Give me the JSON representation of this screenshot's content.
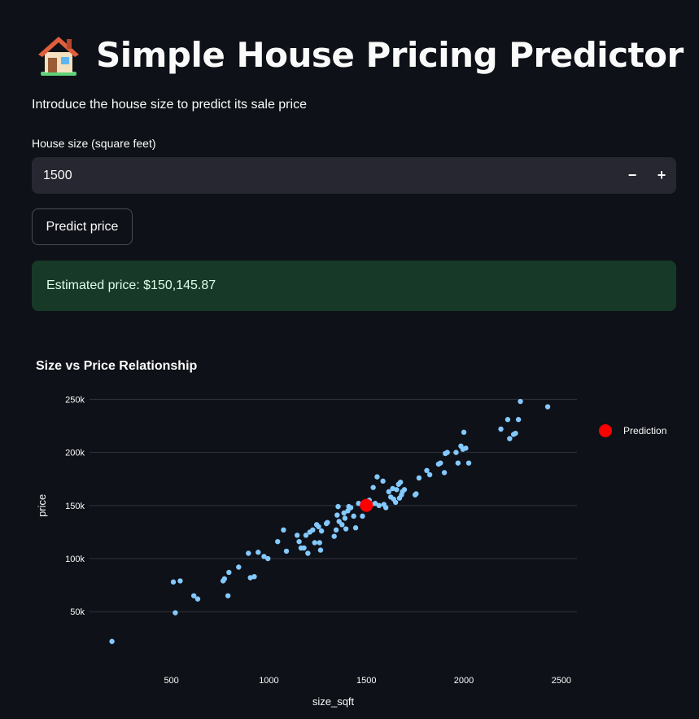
{
  "header": {
    "title": "Simple House Pricing Predictor",
    "icon": "house-icon"
  },
  "intro": "Introduce the house size to predict its sale price",
  "size_input": {
    "label": "House size (square feet)",
    "value": "1500",
    "decrement_label": "−",
    "increment_label": "+"
  },
  "predict_button": {
    "label": "Predict price"
  },
  "result": {
    "text": "Estimated price: $150,145.87",
    "background": "#173928"
  },
  "chart_section": {
    "title": "Size vs Price Relationship"
  },
  "colors": {
    "background": "#0e1117",
    "point": "#83c9ff",
    "prediction": "#ff0000",
    "grid": "#31333f"
  },
  "chart_data": {
    "type": "scatter",
    "title": "",
    "xlabel": "size_sqft",
    "ylabel": "price",
    "xlim": [
      80,
      2580
    ],
    "ylim": [
      8000,
      258000
    ],
    "x_ticks": [
      500,
      1000,
      1500,
      2000,
      2500
    ],
    "x_tick_labels": [
      "500",
      "1000",
      "1500",
      "2000",
      "2500"
    ],
    "y_ticks": [
      50000,
      100000,
      150000,
      200000,
      250000
    ],
    "y_tick_labels": [
      "50k",
      "100k",
      "150k",
      "200k",
      "250k"
    ],
    "grid": "horizontal",
    "legend": {
      "position": "top-right",
      "entries": [
        "Prediction"
      ]
    },
    "series": [
      {
        "values": [
          [
            195,
            22000
          ],
          [
            510,
            78000
          ],
          [
            520,
            49000
          ],
          [
            545,
            79000
          ],
          [
            615,
            65000
          ],
          [
            635,
            62000
          ],
          [
            765,
            79000
          ],
          [
            772,
            81000
          ],
          [
            795,
            87000
          ],
          [
            790,
            65000
          ],
          [
            845,
            92000
          ],
          [
            895,
            105000
          ],
          [
            905,
            82000
          ],
          [
            925,
            83000
          ],
          [
            945,
            106000
          ],
          [
            975,
            102000
          ],
          [
            995,
            100000
          ],
          [
            1045,
            116000
          ],
          [
            1075,
            127000
          ],
          [
            1090,
            107000
          ],
          [
            1145,
            122000
          ],
          [
            1155,
            116000
          ],
          [
            1165,
            110000
          ],
          [
            1180,
            110000
          ],
          [
            1190,
            122000
          ],
          [
            1200,
            105000
          ],
          [
            1210,
            125000
          ],
          [
            1225,
            127000
          ],
          [
            1235,
            115000
          ],
          [
            1245,
            132000
          ],
          [
            1255,
            130000
          ],
          [
            1260,
            115000
          ],
          [
            1265,
            108000
          ],
          [
            1270,
            126000
          ],
          [
            1295,
            133000
          ],
          [
            1300,
            134000
          ],
          [
            1335,
            121000
          ],
          [
            1345,
            127000
          ],
          [
            1350,
            141000
          ],
          [
            1355,
            149000
          ],
          [
            1360,
            135000
          ],
          [
            1375,
            132000
          ],
          [
            1385,
            143000
          ],
          [
            1390,
            138000
          ],
          [
            1395,
            128000
          ],
          [
            1405,
            145000
          ],
          [
            1410,
            149000
          ],
          [
            1420,
            148000
          ],
          [
            1435,
            140000
          ],
          [
            1445,
            129000
          ],
          [
            1460,
            152000
          ],
          [
            1480,
            140000
          ],
          [
            1490,
            150000
          ],
          [
            1515,
            155000
          ],
          [
            1525,
            151000
          ],
          [
            1535,
            167000
          ],
          [
            1545,
            152000
          ],
          [
            1555,
            177000
          ],
          [
            1565,
            150000
          ],
          [
            1585,
            173000
          ],
          [
            1590,
            151000
          ],
          [
            1600,
            148000
          ],
          [
            1615,
            163000
          ],
          [
            1625,
            158000
          ],
          [
            1635,
            166000
          ],
          [
            1640,
            156000
          ],
          [
            1650,
            153000
          ],
          [
            1655,
            165000
          ],
          [
            1665,
            170000
          ],
          [
            1670,
            157000
          ],
          [
            1675,
            172000
          ],
          [
            1680,
            160000
          ],
          [
            1685,
            163000
          ],
          [
            1695,
            165000
          ],
          [
            1750,
            160000
          ],
          [
            1755,
            161000
          ],
          [
            1770,
            176000
          ],
          [
            1810,
            183000
          ],
          [
            1825,
            179000
          ],
          [
            1870,
            189000
          ],
          [
            1880,
            190000
          ],
          [
            1900,
            181000
          ],
          [
            1905,
            199000
          ],
          [
            1915,
            200000
          ],
          [
            1960,
            200000
          ],
          [
            1970,
            190000
          ],
          [
            1985,
            206000
          ],
          [
            1995,
            203000
          ],
          [
            2000,
            219000
          ],
          [
            2010,
            204000
          ],
          [
            2025,
            190000
          ],
          [
            2190,
            222000
          ],
          [
            2225,
            231000
          ],
          [
            2235,
            213000
          ],
          [
            2255,
            217000
          ],
          [
            2265,
            218000
          ],
          [
            2280,
            231000
          ],
          [
            2290,
            248000
          ],
          [
            2430,
            243000
          ]
        ]
      },
      {
        "name": "Prediction",
        "values": [
          [
            1500,
            150145.87
          ]
        ]
      }
    ]
  }
}
